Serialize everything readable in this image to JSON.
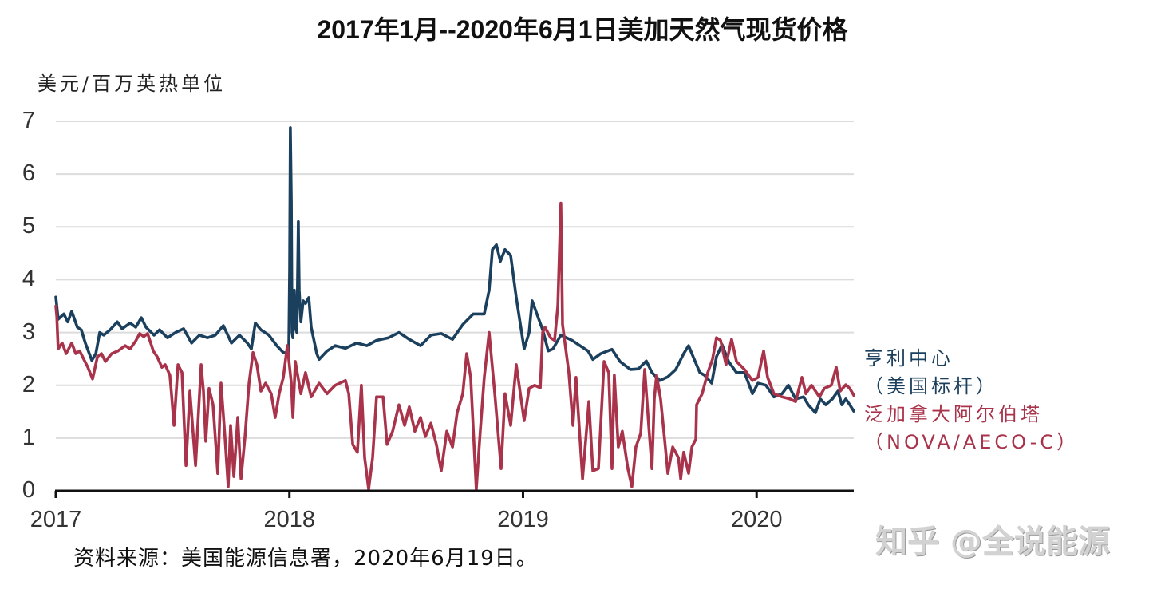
{
  "chart_data": {
    "type": "line",
    "title": "2017年1月--2020年6月1日美加天然气现货价格",
    "xlabel": "",
    "ylabel": "美元/百万英热单位",
    "xlim": [
      2017.0,
      2020.416
    ],
    "ylim": [
      0,
      7
    ],
    "yticks": [
      0,
      1,
      2,
      3,
      4,
      5,
      6,
      7
    ],
    "ytick_labels": [
      "0",
      "1",
      "2",
      "3",
      "4",
      "5",
      "6",
      "7"
    ],
    "xticks": [
      2017,
      2018,
      2019,
      2020
    ],
    "xtick_labels": [
      "2017",
      "2018",
      "2019",
      "2020"
    ],
    "grid": true,
    "legend_position": "right",
    "series": [
      {
        "name": "亨利中心（美国标杆）",
        "color": "#1b405e",
        "x": [
          2017.0,
          2017.01,
          2017.034,
          2017.051,
          2017.068,
          2017.092,
          2017.109,
          2017.126,
          2017.154,
          2017.171,
          2017.188,
          2017.205,
          2017.232,
          2017.263,
          2017.284,
          2017.318,
          2017.342,
          2017.366,
          2017.386,
          2017.42,
          2017.444,
          2017.478,
          2017.512,
          2017.547,
          2017.581,
          2017.615,
          2017.649,
          2017.683,
          2017.717,
          2017.752,
          2017.786,
          2017.82,
          2017.837,
          2017.854,
          2017.878,
          2017.912,
          2017.946,
          2017.974,
          2017.997,
          2018.001,
          2018.004,
          2018.008,
          2018.011,
          2018.015,
          2018.021,
          2018.025,
          2018.032,
          2018.038,
          2018.042,
          2018.049,
          2018.059,
          2018.069,
          2018.083,
          2018.093,
          2018.117,
          2018.127,
          2018.161,
          2018.196,
          2018.24,
          2018.288,
          2018.332,
          2018.373,
          2018.424,
          2018.469,
          2018.513,
          2018.561,
          2018.606,
          2018.65,
          2018.698,
          2018.742,
          2018.787,
          2018.834,
          2018.855,
          2018.869,
          2018.886,
          2018.903,
          2018.923,
          2018.947,
          2018.971,
          2019.005,
          2019.026,
          2019.039,
          2019.084,
          2019.108,
          2019.128,
          2019.162,
          2019.21,
          2019.244,
          2019.278,
          2019.299,
          2019.333,
          2019.381,
          2019.415,
          2019.46,
          2019.494,
          2019.528,
          2019.552,
          2019.586,
          2019.62,
          2019.654,
          2019.688,
          2019.709,
          2019.733,
          2019.757,
          2019.777,
          2019.808,
          2019.828,
          2019.852,
          2019.88,
          2019.914,
          2019.948,
          2019.982,
          2020.006,
          2020.04,
          2020.074,
          2020.109,
          2020.136,
          2020.167,
          2020.201,
          2020.221,
          2020.252,
          2020.273,
          2020.296,
          2020.324,
          2020.348,
          2020.365,
          2020.382,
          2020.399,
          2020.416
        ],
        "values": [
          3.67,
          3.25,
          3.35,
          3.2,
          3.4,
          3.1,
          3.05,
          2.8,
          2.47,
          2.6,
          3.0,
          2.95,
          3.05,
          3.2,
          3.07,
          3.18,
          3.1,
          3.28,
          3.1,
          2.95,
          3.05,
          2.9,
          3.0,
          3.07,
          2.8,
          2.95,
          2.9,
          2.95,
          3.13,
          2.8,
          2.95,
          2.8,
          2.69,
          3.18,
          3.05,
          2.95,
          2.75,
          2.62,
          2.6,
          4.2,
          6.88,
          5.5,
          3.0,
          2.9,
          3.8,
          3.1,
          3.0,
          5.1,
          3.8,
          3.2,
          3.6,
          3.55,
          3.66,
          3.1,
          2.6,
          2.49,
          2.65,
          2.75,
          2.7,
          2.8,
          2.75,
          2.85,
          2.9,
          3.0,
          2.87,
          2.75,
          2.95,
          2.98,
          2.87,
          3.15,
          3.35,
          3.35,
          3.8,
          4.57,
          4.66,
          4.35,
          4.57,
          4.46,
          3.66,
          2.69,
          3.0,
          3.6,
          3.05,
          2.65,
          2.69,
          2.95,
          2.85,
          2.75,
          2.65,
          2.49,
          2.6,
          2.68,
          2.45,
          2.3,
          2.31,
          2.46,
          2.24,
          2.09,
          2.16,
          2.3,
          2.6,
          2.75,
          2.49,
          2.24,
          2.19,
          2.04,
          2.54,
          2.77,
          2.45,
          2.24,
          2.24,
          1.84,
          2.04,
          2.0,
          1.78,
          1.84,
          2.0,
          1.74,
          1.78,
          1.63,
          1.48,
          1.74,
          1.63,
          1.74,
          1.89,
          1.63,
          1.74,
          1.63,
          1.51
        ]
      },
      {
        "name": "泛加拿大阿尔伯塔（NOVA/AECO-C）",
        "color": "#a8334a",
        "x": [
          2017.0,
          2017.004,
          2017.01,
          2017.027,
          2017.044,
          2017.068,
          2017.085,
          2017.102,
          2017.12,
          2017.137,
          2017.157,
          2017.178,
          2017.195,
          2017.212,
          2017.239,
          2017.266,
          2017.297,
          2017.318,
          2017.342,
          2017.359,
          2017.376,
          2017.393,
          2017.417,
          2017.434,
          2017.454,
          2017.468,
          2017.488,
          2017.495,
          2017.506,
          2017.523,
          2017.54,
          2017.557,
          2017.574,
          2017.598,
          2017.622,
          2017.632,
          2017.642,
          2017.656,
          2017.673,
          2017.693,
          2017.707,
          2017.724,
          2017.738,
          2017.748,
          2017.762,
          2017.779,
          2017.793,
          2017.81,
          2017.827,
          2017.844,
          2017.861,
          2017.878,
          2017.898,
          2017.922,
          2017.939,
          2017.956,
          2017.974,
          2017.991,
          2018.008,
          2018.015,
          2018.025,
          2018.049,
          2018.069,
          2018.093,
          2018.127,
          2018.161,
          2018.196,
          2018.24,
          2018.254,
          2018.271,
          2018.291,
          2018.308,
          2018.322,
          2018.339,
          2018.356,
          2018.373,
          2018.401,
          2018.418,
          2018.442,
          2018.469,
          2018.493,
          2018.513,
          2018.537,
          2018.561,
          2018.582,
          2018.606,
          2018.629,
          2018.65,
          2018.674,
          2018.698,
          2018.718,
          2018.742,
          2018.759,
          2018.776,
          2018.8,
          2018.817,
          2018.834,
          2018.855,
          2018.879,
          2018.906,
          2018.923,
          2018.947,
          2018.971,
          2019.005,
          2019.026,
          2019.05,
          2019.074,
          2019.084,
          2019.094,
          2019.118,
          2019.135,
          2019.149,
          2019.162,
          2019.169,
          2019.196,
          2019.214,
          2019.227,
          2019.255,
          2019.282,
          2019.299,
          2019.323,
          2019.347,
          2019.367,
          2019.381,
          2019.391,
          2019.408,
          2019.425,
          2019.449,
          2019.466,
          2019.483,
          2019.504,
          2019.521,
          2019.538,
          2019.552,
          2019.562,
          2019.572,
          2019.589,
          2019.606,
          2019.62,
          2019.641,
          2019.665,
          2019.675,
          2019.688,
          2019.709,
          2019.723,
          2019.74,
          2019.743,
          2019.767,
          2019.791,
          2019.811,
          2019.828,
          2019.846,
          2019.869,
          2019.893,
          2019.914,
          2019.948,
          2019.982,
          2020.006,
          2020.03,
          2020.047,
          2020.074,
          2020.109,
          2020.143,
          2020.167,
          2020.194,
          2020.211,
          2020.235,
          2020.269,
          2020.29,
          2020.32,
          2020.341,
          2020.358,
          2020.382,
          2020.399,
          2020.416
        ],
        "values": [
          3.5,
          3.3,
          2.69,
          2.8,
          2.6,
          2.8,
          2.6,
          2.65,
          2.49,
          2.34,
          2.12,
          2.54,
          2.6,
          2.45,
          2.6,
          2.65,
          2.75,
          2.69,
          2.84,
          2.98,
          2.92,
          2.98,
          2.65,
          2.54,
          2.34,
          2.39,
          2.19,
          1.84,
          1.24,
          2.39,
          2.24,
          0.48,
          1.89,
          0.48,
          2.39,
          1.89,
          0.94,
          1.94,
          1.63,
          0.33,
          2.04,
          1.03,
          0.08,
          1.24,
          0.27,
          1.39,
          0.23,
          1.03,
          2.04,
          2.62,
          2.39,
          1.89,
          2.04,
          1.84,
          1.39,
          1.84,
          2.15,
          2.75,
          2.04,
          1.39,
          2.45,
          1.84,
          2.24,
          1.78,
          2.04,
          1.84,
          2.0,
          2.09,
          1.84,
          0.88,
          0.73,
          2.0,
          0.63,
          0.03,
          0.63,
          1.78,
          1.78,
          0.88,
          1.13,
          1.63,
          1.24,
          1.59,
          1.13,
          1.39,
          1.03,
          1.28,
          0.88,
          0.38,
          1.13,
          0.83,
          1.48,
          1.84,
          2.6,
          2.15,
          0.03,
          1.13,
          2.15,
          3.0,
          1.84,
          0.42,
          1.84,
          1.24,
          2.39,
          1.33,
          1.94,
          2.0,
          1.95,
          3.0,
          3.1,
          2.9,
          2.85,
          3.5,
          5.45,
          3.15,
          2.24,
          1.24,
          2.15,
          0.23,
          1.69,
          0.38,
          0.42,
          2.45,
          2.24,
          0.42,
          2.19,
          0.83,
          1.13,
          0.42,
          0.08,
          0.83,
          1.09,
          2.3,
          1.24,
          0.42,
          1.74,
          2.19,
          1.74,
          0.98,
          0.33,
          0.83,
          0.63,
          0.23,
          0.73,
          0.33,
          0.83,
          0.98,
          1.63,
          1.84,
          2.24,
          2.49,
          2.9,
          2.85,
          2.39,
          2.87,
          2.45,
          2.3,
          2.09,
          2.15,
          2.65,
          2.15,
          1.84,
          1.78,
          1.74,
          1.69,
          2.15,
          1.84,
          2.0,
          1.78,
          1.94,
          2.0,
          2.34,
          1.89,
          2.01,
          1.94,
          1.81
        ]
      }
    ],
    "legend": [
      {
        "line1": "亨利中心",
        "line2": "（美国标杆）",
        "color": "#1b405e"
      },
      {
        "line1": "泛加拿大阿尔伯塔",
        "line2": "（NOVA/AECO-C）",
        "color": "#a8334a"
      }
    ],
    "annotations": {
      "source": "资料来源：美国能源信息署，2020年6月19日。"
    }
  },
  "style": {
    "grid_color": "#dcdcdc",
    "axis_color": "#111111"
  },
  "watermark": "知乎 @全说能源"
}
